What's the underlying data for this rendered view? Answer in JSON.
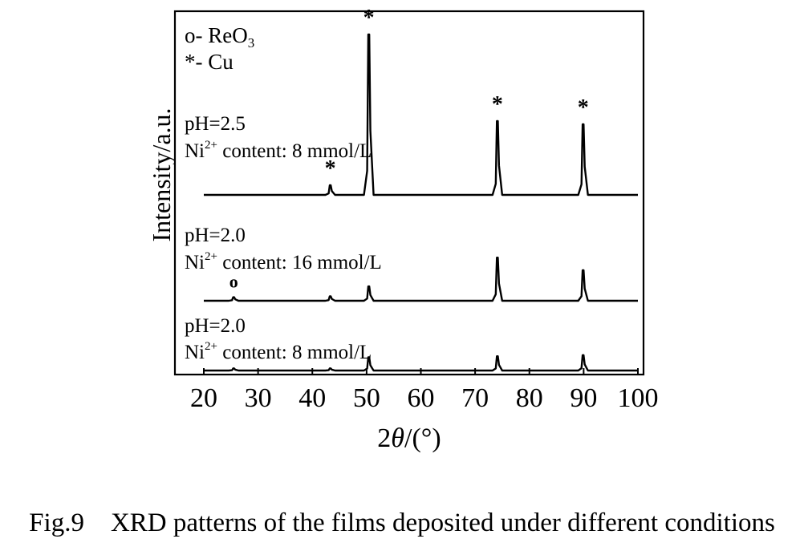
{
  "chart_data": {
    "type": "line",
    "xlabel_prefix": "2",
    "xlabel_symbol": "θ",
    "xlabel_suffix": "/(°)",
    "ylabel": "Intensity/a.u.",
    "xlim": [
      20,
      100
    ],
    "xticks": [
      "20",
      "30",
      "40",
      "50",
      "60",
      "70",
      "80",
      "90",
      "100"
    ],
    "legend": [
      {
        "marker": "o",
        "text": "- ReO",
        "sub": "3"
      },
      {
        "marker": "*",
        "text": "- Cu",
        "sub": ""
      }
    ],
    "series": [
      {
        "name": "pH=2.5, Ni2+ 8 mmol/L",
        "label_line1": "pH=2.5",
        "label_ion": "Ni",
        "label_charge": "2+",
        "label_rest": " content: 8 mmol/L",
        "peaks": [
          [
            43.3,
            0.06
          ],
          [
            50.4,
            1.0
          ],
          [
            74.1,
            0.46
          ],
          [
            89.9,
            0.44
          ]
        ],
        "markers": [
          {
            "symbol": "*",
            "x": 43.3
          },
          {
            "symbol": "*",
            "x": 50.4
          },
          {
            "symbol": "*",
            "x": 74.1
          },
          {
            "symbol": "*",
            "x": 89.9
          }
        ]
      },
      {
        "name": "pH=2.0, Ni2+ 16 mmol/L",
        "label_line1": "pH=2.0",
        "label_ion": "Ni",
        "label_charge": "2+",
        "label_rest": " content: 16 mmol/L",
        "peaks": [
          [
            25.5,
            0.04
          ],
          [
            43.3,
            0.05
          ],
          [
            50.4,
            0.16
          ],
          [
            74.1,
            0.48
          ],
          [
            89.9,
            0.34
          ]
        ],
        "markers": [
          {
            "symbol": "o",
            "x": 25.5
          }
        ]
      },
      {
        "name": "pH=2.0, Ni2+ 8 mmol/L",
        "label_line1": "pH=2.0",
        "label_ion": "Ni",
        "label_charge": "2+",
        "label_rest": " content: 8 mmol/L",
        "peaks": [
          [
            25.5,
            0.04
          ],
          [
            43.3,
            0.04
          ],
          [
            50.4,
            0.25
          ],
          [
            74.1,
            0.27
          ],
          [
            89.9,
            0.29
          ]
        ],
        "markers": []
      }
    ]
  },
  "caption": "Fig.9    XRD patterns of the films deposited under different conditions"
}
